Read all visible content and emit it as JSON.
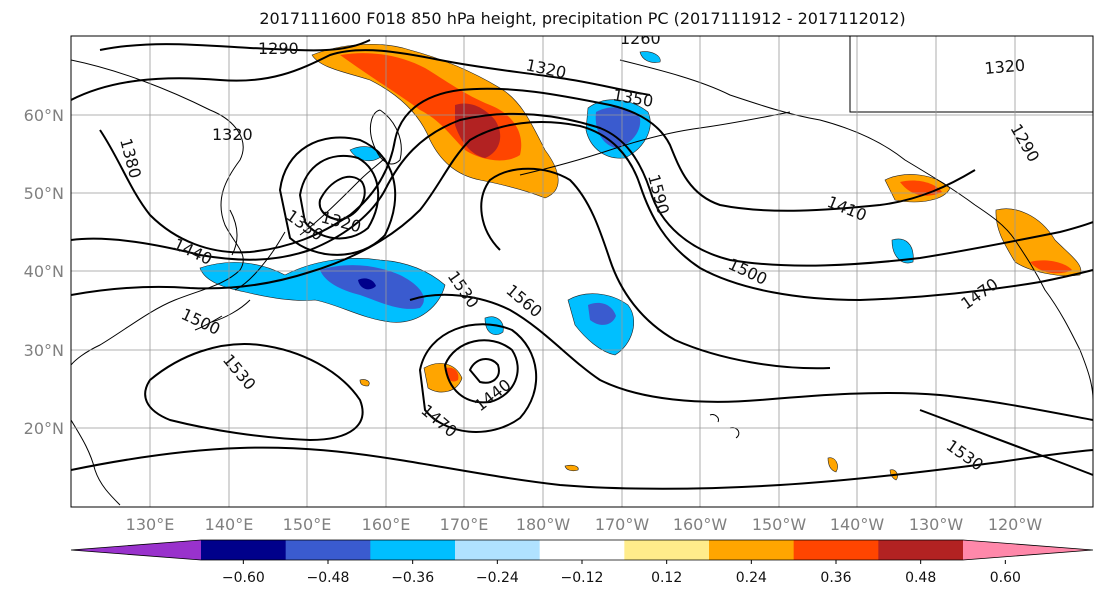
{
  "title": "2017111600 F018 850 hPa height, precipitation PC (2017111912 - 2017112012)",
  "lat_labels": [
    "60°N",
    "50°N",
    "40°N",
    "30°N",
    "20°N"
  ],
  "lon_labels": [
    "130°E",
    "140°E",
    "150°E",
    "160°E",
    "170°E",
    "180°W",
    "170°W",
    "160°W",
    "150°W",
    "140°W",
    "130°W",
    "120°W"
  ],
  "colorbar": {
    "colors": [
      "#9932cc",
      "#00008b",
      "#3a5bcf",
      "#00bfff",
      "#b0e2ff",
      "#ffffff",
      "#ffec8b",
      "#ffa500",
      "#ff4500",
      "#b22222",
      "#ff88aa"
    ],
    "tick_labels": [
      "−0.60",
      "−0.48",
      "−0.36",
      "−0.24",
      "−0.12",
      "0.12",
      "0.24",
      "0.36",
      "0.48",
      "0.60"
    ]
  },
  "contour_labels": [
    "1290",
    "1260",
    "1320",
    "1350",
    "1320",
    "1290",
    "1320",
    "1380",
    "1320",
    "1350",
    "1440",
    "1590",
    "1410",
    "1500",
    "1530",
    "1560",
    "1500",
    "1470",
    "1530",
    "1440",
    "1470",
    "1530"
  ]
}
